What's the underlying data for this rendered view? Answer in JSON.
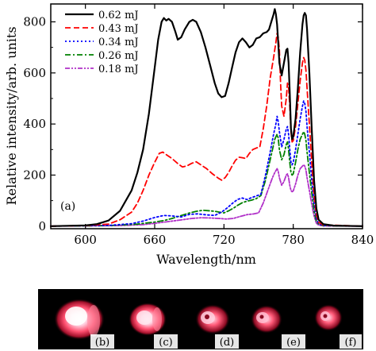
{
  "chart_data": {
    "type": "line",
    "xlabel": "Wavelength/nm",
    "ylabel": "Relative intensity/arb. units",
    "xlim": [
      570,
      840
    ],
    "ylim": [
      -10,
      870
    ],
    "xticks": [
      600,
      660,
      720,
      780,
      840
    ],
    "yticks": [
      0,
      200,
      400,
      600,
      800
    ],
    "grid": false,
    "legend_position": "top-left",
    "panel_label": "(a)",
    "series": [
      {
        "name": "0.62 mJ",
        "color": "#000000",
        "dash": "solid",
        "points": [
          [
            570,
            0
          ],
          [
            600,
            3
          ],
          [
            610,
            8
          ],
          [
            620,
            22
          ],
          [
            630,
            60
          ],
          [
            640,
            140
          ],
          [
            645,
            210
          ],
          [
            650,
            300
          ],
          [
            655,
            440
          ],
          [
            660,
            620
          ],
          [
            663,
            730
          ],
          [
            666,
            800
          ],
          [
            668,
            815
          ],
          [
            670,
            805
          ],
          [
            672,
            812
          ],
          [
            675,
            800
          ],
          [
            678,
            760
          ],
          [
            680,
            730
          ],
          [
            683,
            740
          ],
          [
            686,
            770
          ],
          [
            690,
            800
          ],
          [
            693,
            808
          ],
          [
            696,
            800
          ],
          [
            700,
            760
          ],
          [
            704,
            700
          ],
          [
            708,
            630
          ],
          [
            712,
            560
          ],
          [
            715,
            520
          ],
          [
            718,
            505
          ],
          [
            721,
            510
          ],
          [
            724,
            560
          ],
          [
            727,
            620
          ],
          [
            730,
            680
          ],
          [
            733,
            720
          ],
          [
            736,
            735
          ],
          [
            739,
            720
          ],
          [
            742,
            700
          ],
          [
            745,
            710
          ],
          [
            748,
            735
          ],
          [
            751,
            740
          ],
          [
            754,
            755
          ],
          [
            757,
            760
          ],
          [
            759,
            770
          ],
          [
            761,
            800
          ],
          [
            763,
            830
          ],
          [
            764,
            850
          ],
          [
            765,
            830
          ],
          [
            766,
            790
          ],
          [
            767,
            720
          ],
          [
            768,
            640
          ],
          [
            770,
            590
          ],
          [
            772,
            640
          ],
          [
            774,
            690
          ],
          [
            775,
            695
          ],
          [
            776,
            640
          ],
          [
            777,
            520
          ],
          [
            778,
            380
          ],
          [
            779,
            340
          ],
          [
            780,
            350
          ],
          [
            782,
            420
          ],
          [
            784,
            540
          ],
          [
            786,
            680
          ],
          [
            788,
            790
          ],
          [
            789,
            825
          ],
          [
            790,
            835
          ],
          [
            791,
            825
          ],
          [
            792,
            770
          ],
          [
            794,
            600
          ],
          [
            796,
            380
          ],
          [
            798,
            180
          ],
          [
            800,
            70
          ],
          [
            802,
            25
          ],
          [
            806,
            8
          ],
          [
            815,
            2
          ],
          [
            840,
            0
          ]
        ]
      },
      {
        "name": "0.43 mJ",
        "color": "#ff0000",
        "dash": "dashed",
        "points": [
          [
            570,
            0
          ],
          [
            600,
            2
          ],
          [
            620,
            8
          ],
          [
            630,
            25
          ],
          [
            640,
            55
          ],
          [
            645,
            90
          ],
          [
            650,
            140
          ],
          [
            655,
            200
          ],
          [
            660,
            250
          ],
          [
            664,
            285
          ],
          [
            667,
            290
          ],
          [
            670,
            280
          ],
          [
            675,
            265
          ],
          [
            680,
            245
          ],
          [
            684,
            232
          ],
          [
            688,
            236
          ],
          [
            692,
            246
          ],
          [
            696,
            252
          ],
          [
            700,
            240
          ],
          [
            705,
            225
          ],
          [
            710,
            205
          ],
          [
            715,
            188
          ],
          [
            718,
            180
          ],
          [
            721,
            190
          ],
          [
            724,
            210
          ],
          [
            727,
            235
          ],
          [
            730,
            258
          ],
          [
            733,
            270
          ],
          [
            736,
            268
          ],
          [
            739,
            265
          ],
          [
            742,
            285
          ],
          [
            745,
            300
          ],
          [
            748,
            306
          ],
          [
            751,
            310
          ],
          [
            754,
            380
          ],
          [
            757,
            470
          ],
          [
            760,
            580
          ],
          [
            763,
            660
          ],
          [
            765,
            720
          ],
          [
            766,
            755
          ],
          [
            767,
            740
          ],
          [
            768,
            690
          ],
          [
            769,
            560
          ],
          [
            770,
            470
          ],
          [
            772,
            430
          ],
          [
            774,
            500
          ],
          [
            775,
            560
          ],
          [
            776,
            545
          ],
          [
            777,
            470
          ],
          [
            778,
            370
          ],
          [
            779,
            330
          ],
          [
            780,
            335
          ],
          [
            782,
            390
          ],
          [
            784,
            480
          ],
          [
            786,
            570
          ],
          [
            788,
            640
          ],
          [
            789,
            660
          ],
          [
            790,
            650
          ],
          [
            791,
            610
          ],
          [
            792,
            540
          ],
          [
            794,
            400
          ],
          [
            796,
            250
          ],
          [
            798,
            120
          ],
          [
            800,
            45
          ],
          [
            802,
            15
          ],
          [
            806,
            5
          ],
          [
            840,
            0
          ]
        ]
      },
      {
        "name": "0.34 mJ",
        "color": "#0000ff",
        "dash": "dotted",
        "points": [
          [
            570,
            0
          ],
          [
            620,
            3
          ],
          [
            640,
            10
          ],
          [
            650,
            20
          ],
          [
            660,
            34
          ],
          [
            668,
            42
          ],
          [
            675,
            40
          ],
          [
            683,
            36
          ],
          [
            690,
            46
          ],
          [
            697,
            48
          ],
          [
            705,
            44
          ],
          [
            712,
            42
          ],
          [
            718,
            55
          ],
          [
            723,
            72
          ],
          [
            728,
            92
          ],
          [
            732,
            105
          ],
          [
            736,
            110
          ],
          [
            740,
            104
          ],
          [
            744,
            112
          ],
          [
            748,
            118
          ],
          [
            752,
            125
          ],
          [
            756,
            200
          ],
          [
            760,
            290
          ],
          [
            763,
            360
          ],
          [
            765,
            400
          ],
          [
            766,
            430
          ],
          [
            767,
            410
          ],
          [
            768,
            370
          ],
          [
            770,
            310
          ],
          [
            772,
            340
          ],
          [
            774,
            380
          ],
          [
            775,
            390
          ],
          [
            776,
            360
          ],
          [
            777,
            300
          ],
          [
            778,
            250
          ],
          [
            779,
            240
          ],
          [
            780,
            250
          ],
          [
            782,
            300
          ],
          [
            784,
            360
          ],
          [
            786,
            420
          ],
          [
            788,
            470
          ],
          [
            789,
            490
          ],
          [
            790,
            480
          ],
          [
            791,
            450
          ],
          [
            792,
            390
          ],
          [
            794,
            290
          ],
          [
            796,
            180
          ],
          [
            798,
            90
          ],
          [
            800,
            30
          ],
          [
            802,
            10
          ],
          [
            806,
            3
          ],
          [
            840,
            0
          ]
        ]
      },
      {
        "name": "0.26 mJ",
        "color": "#008000",
        "dash": "dash-dot",
        "points": [
          [
            570,
            0
          ],
          [
            620,
            2
          ],
          [
            645,
            8
          ],
          [
            660,
            16
          ],
          [
            668,
            22
          ],
          [
            675,
            30
          ],
          [
            682,
            40
          ],
          [
            689,
            50
          ],
          [
            696,
            58
          ],
          [
            702,
            62
          ],
          [
            708,
            60
          ],
          [
            712,
            58
          ],
          [
            716,
            55
          ],
          [
            720,
            52
          ],
          [
            724,
            60
          ],
          [
            728,
            70
          ],
          [
            732,
            82
          ],
          [
            736,
            92
          ],
          [
            740,
            98
          ],
          [
            744,
            102
          ],
          [
            748,
            108
          ],
          [
            752,
            120
          ],
          [
            756,
            180
          ],
          [
            760,
            260
          ],
          [
            762,
            300
          ],
          [
            764,
            340
          ],
          [
            766,
            360
          ],
          [
            767,
            345
          ],
          [
            768,
            300
          ],
          [
            770,
            260
          ],
          [
            772,
            280
          ],
          [
            774,
            320
          ],
          [
            775,
            330
          ],
          [
            776,
            300
          ],
          [
            777,
            250
          ],
          [
            778,
            210
          ],
          [
            779,
            200
          ],
          [
            780,
            205
          ],
          [
            782,
            250
          ],
          [
            784,
            300
          ],
          [
            786,
            340
          ],
          [
            788,
            360
          ],
          [
            789,
            370
          ],
          [
            790,
            360
          ],
          [
            791,
            335
          ],
          [
            792,
            290
          ],
          [
            794,
            210
          ],
          [
            796,
            130
          ],
          [
            798,
            60
          ],
          [
            800,
            20
          ],
          [
            802,
            8
          ],
          [
            806,
            2
          ],
          [
            840,
            0
          ]
        ]
      },
      {
        "name": "0.18 mJ",
        "color": "#b030c8",
        "dash": "dash-dot-dot",
        "points": [
          [
            570,
            0
          ],
          [
            630,
            2
          ],
          [
            650,
            6
          ],
          [
            662,
            12
          ],
          [
            672,
            18
          ],
          [
            682,
            24
          ],
          [
            692,
            30
          ],
          [
            700,
            33
          ],
          [
            708,
            32
          ],
          [
            716,
            30
          ],
          [
            722,
            28
          ],
          [
            728,
            30
          ],
          [
            734,
            38
          ],
          [
            740,
            45
          ],
          [
            746,
            48
          ],
          [
            750,
            52
          ],
          [
            754,
            90
          ],
          [
            758,
            140
          ],
          [
            762,
            190
          ],
          [
            764,
            210
          ],
          [
            766,
            225
          ],
          [
            767,
            215
          ],
          [
            768,
            190
          ],
          [
            770,
            160
          ],
          [
            772,
            175
          ],
          [
            774,
            200
          ],
          [
            775,
            205
          ],
          [
            776,
            190
          ],
          [
            777,
            160
          ],
          [
            778,
            140
          ],
          [
            779,
            135
          ],
          [
            780,
            138
          ],
          [
            782,
            165
          ],
          [
            784,
            200
          ],
          [
            786,
            225
          ],
          [
            788,
            235
          ],
          [
            789,
            240
          ],
          [
            790,
            235
          ],
          [
            791,
            220
          ],
          [
            792,
            190
          ],
          [
            794,
            140
          ],
          [
            796,
            85
          ],
          [
            798,
            40
          ],
          [
            800,
            12
          ],
          [
            802,
            4
          ],
          [
            806,
            1
          ],
          [
            840,
            0
          ]
        ]
      }
    ]
  },
  "inset": {
    "panel_labels": [
      "(b)",
      "(c)",
      "(d)",
      "(e)",
      "(f)"
    ],
    "background_color": "#000000",
    "spot_color": "#ff5070"
  }
}
